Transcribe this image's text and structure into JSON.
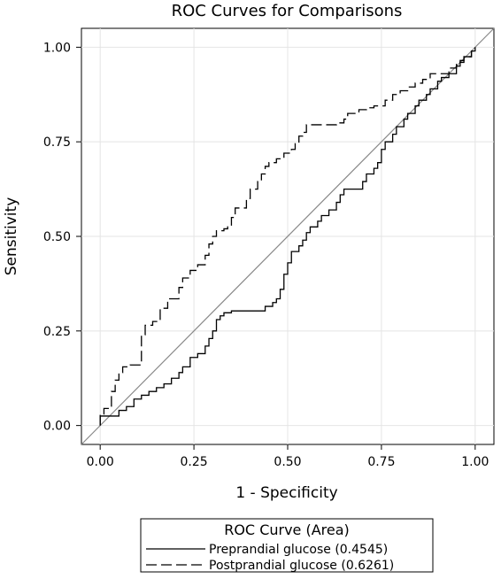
{
  "chart_data": {
    "type": "line",
    "title": "ROC Curves for Comparisons",
    "xlabel": "1 - Specificity",
    "ylabel": "Sensitivity",
    "xlim": [
      -0.05,
      1.05
    ],
    "ylim": [
      -0.05,
      1.05
    ],
    "xticks": [
      "0.00",
      "0.25",
      "0.50",
      "0.75",
      "1.00"
    ],
    "yticks": [
      "0.00",
      "0.25",
      "0.50",
      "0.75",
      "1.00"
    ],
    "grid": true,
    "legend": {
      "title": "ROC Curve (Area)",
      "position": "bottom",
      "entries": [
        "Preprandial glucose  (0.4545)",
        "Postprandial glucose  (0.6261)"
      ]
    },
    "reference_line": [
      [
        -0.05,
        -0.05
      ],
      [
        1.05,
        1.05
      ]
    ],
    "series": [
      {
        "name": "Preprandial glucose  (0.4545)",
        "style": "solid",
        "points": [
          [
            0.0,
            0.0
          ],
          [
            0.0,
            0.025
          ],
          [
            0.05,
            0.025
          ],
          [
            0.05,
            0.04
          ],
          [
            0.07,
            0.04
          ],
          [
            0.07,
            0.05
          ],
          [
            0.09,
            0.05
          ],
          [
            0.09,
            0.07
          ],
          [
            0.11,
            0.07
          ],
          [
            0.11,
            0.08
          ],
          [
            0.13,
            0.08
          ],
          [
            0.13,
            0.09
          ],
          [
            0.15,
            0.09
          ],
          [
            0.15,
            0.1
          ],
          [
            0.17,
            0.1
          ],
          [
            0.17,
            0.11
          ],
          [
            0.19,
            0.11
          ],
          [
            0.19,
            0.125
          ],
          [
            0.21,
            0.125
          ],
          [
            0.21,
            0.14
          ],
          [
            0.22,
            0.14
          ],
          [
            0.22,
            0.155
          ],
          [
            0.24,
            0.155
          ],
          [
            0.24,
            0.18
          ],
          [
            0.26,
            0.18
          ],
          [
            0.26,
            0.19
          ],
          [
            0.28,
            0.19
          ],
          [
            0.28,
            0.21
          ],
          [
            0.29,
            0.21
          ],
          [
            0.29,
            0.23
          ],
          [
            0.3,
            0.23
          ],
          [
            0.3,
            0.25
          ],
          [
            0.31,
            0.25
          ],
          [
            0.31,
            0.28
          ],
          [
            0.32,
            0.28
          ],
          [
            0.32,
            0.29
          ],
          [
            0.33,
            0.29
          ],
          [
            0.33,
            0.298
          ],
          [
            0.35,
            0.298
          ],
          [
            0.35,
            0.303
          ],
          [
            0.44,
            0.303
          ],
          [
            0.44,
            0.315
          ],
          [
            0.46,
            0.315
          ],
          [
            0.46,
            0.325
          ],
          [
            0.47,
            0.325
          ],
          [
            0.47,
            0.335
          ],
          [
            0.48,
            0.335
          ],
          [
            0.48,
            0.36
          ],
          [
            0.49,
            0.36
          ],
          [
            0.49,
            0.4
          ],
          [
            0.5,
            0.4
          ],
          [
            0.5,
            0.43
          ],
          [
            0.51,
            0.43
          ],
          [
            0.51,
            0.46
          ],
          [
            0.53,
            0.46
          ],
          [
            0.53,
            0.475
          ],
          [
            0.54,
            0.475
          ],
          [
            0.54,
            0.49
          ],
          [
            0.55,
            0.49
          ],
          [
            0.55,
            0.51
          ],
          [
            0.56,
            0.51
          ],
          [
            0.56,
            0.525
          ],
          [
            0.58,
            0.525
          ],
          [
            0.58,
            0.54
          ],
          [
            0.59,
            0.54
          ],
          [
            0.59,
            0.555
          ],
          [
            0.61,
            0.555
          ],
          [
            0.61,
            0.57
          ],
          [
            0.63,
            0.57
          ],
          [
            0.63,
            0.59
          ],
          [
            0.64,
            0.59
          ],
          [
            0.64,
            0.61
          ],
          [
            0.65,
            0.61
          ],
          [
            0.65,
            0.625
          ],
          [
            0.7,
            0.625
          ],
          [
            0.7,
            0.645
          ],
          [
            0.71,
            0.645
          ],
          [
            0.71,
            0.665
          ],
          [
            0.73,
            0.665
          ],
          [
            0.73,
            0.68
          ],
          [
            0.74,
            0.68
          ],
          [
            0.74,
            0.695
          ],
          [
            0.75,
            0.695
          ],
          [
            0.75,
            0.73
          ],
          [
            0.76,
            0.73
          ],
          [
            0.76,
            0.75
          ],
          [
            0.78,
            0.75
          ],
          [
            0.78,
            0.77
          ],
          [
            0.79,
            0.77
          ],
          [
            0.79,
            0.79
          ],
          [
            0.81,
            0.79
          ],
          [
            0.81,
            0.81
          ],
          [
            0.82,
            0.81
          ],
          [
            0.82,
            0.825
          ],
          [
            0.84,
            0.825
          ],
          [
            0.84,
            0.845
          ],
          [
            0.85,
            0.845
          ],
          [
            0.85,
            0.86
          ],
          [
            0.87,
            0.86
          ],
          [
            0.87,
            0.875
          ],
          [
            0.88,
            0.875
          ],
          [
            0.88,
            0.89
          ],
          [
            0.9,
            0.89
          ],
          [
            0.9,
            0.91
          ],
          [
            0.91,
            0.91
          ],
          [
            0.91,
            0.92
          ],
          [
            0.93,
            0.92
          ],
          [
            0.93,
            0.93
          ],
          [
            0.95,
            0.93
          ],
          [
            0.95,
            0.95
          ],
          [
            0.96,
            0.95
          ],
          [
            0.96,
            0.965
          ],
          [
            0.97,
            0.965
          ],
          [
            0.97,
            0.975
          ],
          [
            0.99,
            0.975
          ],
          [
            0.99,
            0.99
          ],
          [
            1.0,
            0.99
          ],
          [
            1.0,
            1.0
          ]
        ]
      },
      {
        "name": "Postprandial glucose  (0.6261)",
        "style": "dashed",
        "points": [
          [
            0.0,
            0.0
          ],
          [
            0.0,
            0.03
          ],
          [
            0.01,
            0.03
          ],
          [
            0.01,
            0.045
          ],
          [
            0.03,
            0.045
          ],
          [
            0.03,
            0.09
          ],
          [
            0.04,
            0.09
          ],
          [
            0.04,
            0.12
          ],
          [
            0.05,
            0.12
          ],
          [
            0.05,
            0.14
          ],
          [
            0.06,
            0.14
          ],
          [
            0.06,
            0.155
          ],
          [
            0.08,
            0.155
          ],
          [
            0.08,
            0.16
          ],
          [
            0.11,
            0.16
          ],
          [
            0.11,
            0.24
          ],
          [
            0.12,
            0.24
          ],
          [
            0.12,
            0.265
          ],
          [
            0.14,
            0.265
          ],
          [
            0.14,
            0.275
          ],
          [
            0.16,
            0.275
          ],
          [
            0.16,
            0.31
          ],
          [
            0.18,
            0.31
          ],
          [
            0.18,
            0.335
          ],
          [
            0.21,
            0.335
          ],
          [
            0.21,
            0.365
          ],
          [
            0.22,
            0.365
          ],
          [
            0.22,
            0.39
          ],
          [
            0.24,
            0.39
          ],
          [
            0.24,
            0.41
          ],
          [
            0.26,
            0.41
          ],
          [
            0.26,
            0.425
          ],
          [
            0.28,
            0.425
          ],
          [
            0.28,
            0.45
          ],
          [
            0.29,
            0.45
          ],
          [
            0.29,
            0.48
          ],
          [
            0.3,
            0.48
          ],
          [
            0.3,
            0.5
          ],
          [
            0.31,
            0.5
          ],
          [
            0.31,
            0.515
          ],
          [
            0.33,
            0.515
          ],
          [
            0.33,
            0.52
          ],
          [
            0.34,
            0.52
          ],
          [
            0.34,
            0.525
          ],
          [
            0.35,
            0.525
          ],
          [
            0.35,
            0.55
          ],
          [
            0.36,
            0.55
          ],
          [
            0.36,
            0.575
          ],
          [
            0.39,
            0.575
          ],
          [
            0.39,
            0.6
          ],
          [
            0.4,
            0.6
          ],
          [
            0.4,
            0.625
          ],
          [
            0.42,
            0.625
          ],
          [
            0.42,
            0.645
          ],
          [
            0.43,
            0.645
          ],
          [
            0.43,
            0.665
          ],
          [
            0.44,
            0.665
          ],
          [
            0.44,
            0.685
          ],
          [
            0.45,
            0.685
          ],
          [
            0.45,
            0.695
          ],
          [
            0.47,
            0.695
          ],
          [
            0.47,
            0.705
          ],
          [
            0.49,
            0.705
          ],
          [
            0.49,
            0.72
          ],
          [
            0.51,
            0.72
          ],
          [
            0.51,
            0.73
          ],
          [
            0.52,
            0.73
          ],
          [
            0.52,
            0.745
          ],
          [
            0.53,
            0.745
          ],
          [
            0.53,
            0.765
          ],
          [
            0.54,
            0.765
          ],
          [
            0.54,
            0.775
          ],
          [
            0.55,
            0.775
          ],
          [
            0.55,
            0.795
          ],
          [
            0.63,
            0.795
          ],
          [
            0.63,
            0.8
          ],
          [
            0.65,
            0.8
          ],
          [
            0.65,
            0.81
          ],
          [
            0.66,
            0.81
          ],
          [
            0.66,
            0.825
          ],
          [
            0.69,
            0.825
          ],
          [
            0.69,
            0.835
          ],
          [
            0.71,
            0.835
          ],
          [
            0.71,
            0.84
          ],
          [
            0.73,
            0.84
          ],
          [
            0.73,
            0.845
          ],
          [
            0.76,
            0.845
          ],
          [
            0.76,
            0.86
          ],
          [
            0.78,
            0.86
          ],
          [
            0.78,
            0.875
          ],
          [
            0.8,
            0.875
          ],
          [
            0.8,
            0.885
          ],
          [
            0.82,
            0.885
          ],
          [
            0.82,
            0.895
          ],
          [
            0.84,
            0.895
          ],
          [
            0.84,
            0.905
          ],
          [
            0.86,
            0.905
          ],
          [
            0.86,
            0.915
          ],
          [
            0.88,
            0.915
          ],
          [
            0.88,
            0.93
          ],
          [
            0.93,
            0.93
          ],
          [
            0.93,
            0.945
          ],
          [
            0.95,
            0.945
          ],
          [
            0.95,
            0.96
          ],
          [
            0.97,
            0.96
          ],
          [
            0.97,
            0.975
          ],
          [
            0.99,
            0.975
          ],
          [
            0.99,
            0.99
          ],
          [
            1.0,
            0.99
          ],
          [
            1.0,
            1.0
          ]
        ]
      }
    ]
  }
}
